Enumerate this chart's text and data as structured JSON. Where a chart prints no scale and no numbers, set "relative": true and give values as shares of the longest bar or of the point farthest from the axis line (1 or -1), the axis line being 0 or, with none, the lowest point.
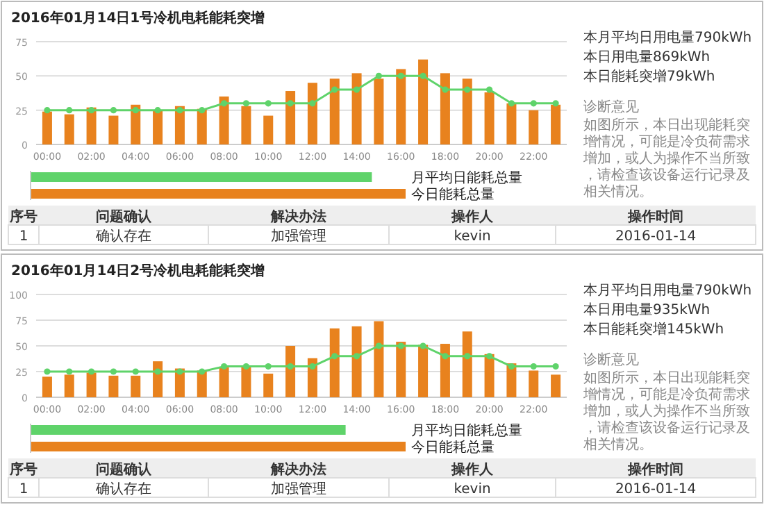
{
  "chart_data": [
    {
      "type": "bar",
      "title": "2016年01月14日1号冷机电耗能耗突增",
      "categories": [
        "00:00",
        null,
        "02:00",
        null,
        "04:00",
        null,
        "06:00",
        null,
        "08:00",
        null,
        "10:00",
        null,
        "12:00",
        null,
        "14:00",
        null,
        "16:00",
        null,
        "18:00",
        null,
        "20:00",
        null,
        "22:00",
        null
      ],
      "ylim": [
        0,
        75
      ],
      "yticks": [
        0,
        25,
        50,
        75
      ],
      "grid": "y",
      "marker": "circle",
      "series": [
        {
          "type": "bar",
          "color": "#e8821e",
          "values": [
            24,
            22,
            27,
            21,
            29,
            25,
            28,
            26,
            35,
            28,
            21,
            39,
            45,
            48,
            52,
            48,
            55,
            62,
            52,
            48,
            38,
            30,
            25,
            29
          ]
        },
        {
          "type": "line",
          "color": "#5fd36a",
          "values": [
            25,
            25,
            25,
            25,
            25,
            25,
            25,
            25,
            30,
            30,
            30,
            30,
            30,
            40,
            40,
            50,
            50,
            50,
            40,
            40,
            40,
            30,
            30,
            30
          ]
        }
      ]
    },
    {
      "type": "bar",
      "orientation": "horizontal",
      "relative": true,
      "categories": [
        "月平均日能耗总量",
        "今日能耗总量"
      ],
      "values": [
        0.91,
        1
      ],
      "colors": [
        "#5fd36a",
        "#e8821e"
      ]
    },
    {
      "type": "other",
      "annotations": [
        "本月平均日用电量790kWh",
        "本日用电量869kWh",
        "本日能耗突增79kWh",
        "诊断意见",
        "如图所示，本日出现能耗突增情况，可能是冷负荷需求增加，或人为操作不当所致，请检查该设备运行记录及相关情况。"
      ]
    },
    {
      "type": "other",
      "annotations": [
        "序号",
        "问题确认",
        "解决办法",
        "操作人",
        "操作时间",
        "1",
        "确认存在",
        "加强管理",
        "kevin",
        "2016-01-14"
      ]
    },
    {
      "type": "bar",
      "title": "2016年01月14日2号冷机电耗能耗突增",
      "categories": [
        "00:00",
        null,
        "02:00",
        null,
        "04:00",
        null,
        "06:00",
        null,
        "08:00",
        null,
        "10:00",
        null,
        "12:00",
        null,
        "14:00",
        null,
        "16:00",
        null,
        "18:00",
        null,
        "20:00",
        null,
        "22:00",
        null
      ],
      "ylim": [
        0,
        100
      ],
      "yticks": [
        0,
        25,
        50,
        75,
        100
      ],
      "grid": "y",
      "marker": "circle",
      "series": [
        {
          "type": "bar",
          "color": "#e8821e",
          "values": [
            20,
            22,
            24,
            21,
            21,
            35,
            28,
            26,
            29,
            30,
            23,
            50,
            38,
            67,
            69,
            74,
            54,
            51,
            52,
            64,
            42,
            33,
            26,
            22
          ]
        },
        {
          "type": "line",
          "color": "#5fd36a",
          "values": [
            25,
            25,
            25,
            25,
            25,
            25,
            25,
            25,
            30,
            30,
            30,
            30,
            30,
            40,
            40,
            50,
            50,
            50,
            40,
            40,
            40,
            30,
            30,
            30
          ]
        }
      ]
    },
    {
      "type": "bar",
      "orientation": "horizontal",
      "relative": true,
      "categories": [
        "月平均日能耗总量",
        "今日能耗总量"
      ],
      "values": [
        0.84,
        1
      ],
      "colors": [
        "#5fd36a",
        "#e8821e"
      ]
    },
    {
      "type": "other",
      "annotations": [
        "本月平均日用电量790kWh",
        "本日用电量935kWh",
        "本日能耗突增145kWh",
        "诊断意见",
        "如图所示，本日出现能耗突增情况，可能是冷负荷需求增加，或人为操作不当所致，请检查该设备运行记录及相关情况。"
      ]
    },
    {
      "type": "other",
      "annotations": [
        "序号",
        "问题确认",
        "解决办法",
        "操作人",
        "操作时间",
        "1",
        "确认存在",
        "加强管理",
        "kevin",
        "2016-01-14"
      ]
    }
  ]
}
